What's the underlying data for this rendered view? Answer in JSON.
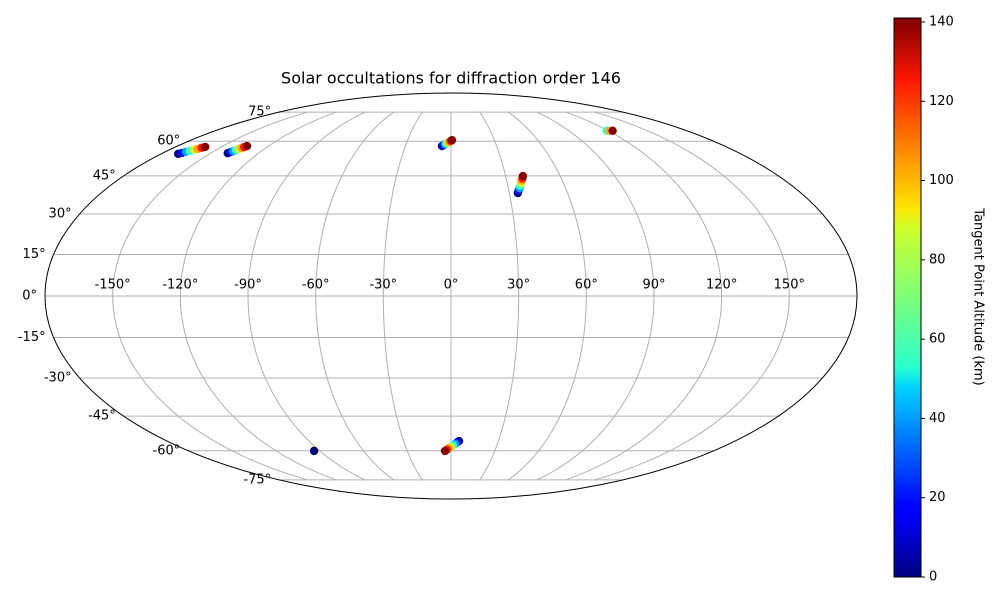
{
  "chart_data": {
    "type": "scatter",
    "projection": "mollweide",
    "title": "Solar occultations for diffraction order 146",
    "grid": true,
    "colormap": "jet",
    "xticks": [
      {
        "value": -150,
        "label": "-150°"
      },
      {
        "value": -120,
        "label": "-120°"
      },
      {
        "value": -90,
        "label": "-90°"
      },
      {
        "value": -60,
        "label": "-60°"
      },
      {
        "value": -30,
        "label": "-30°"
      },
      {
        "value": 0,
        "label": "0°"
      },
      {
        "value": 30,
        "label": "30°"
      },
      {
        "value": 60,
        "label": "60°"
      },
      {
        "value": 90,
        "label": "90°"
      },
      {
        "value": 120,
        "label": "120°"
      },
      {
        "value": 150,
        "label": "150°"
      }
    ],
    "yticks": [
      {
        "value": -75,
        "label": "-75°"
      },
      {
        "value": -60,
        "label": "-60°"
      },
      {
        "value": -45,
        "label": "-45°"
      },
      {
        "value": -30,
        "label": "-30°"
      },
      {
        "value": -15,
        "label": "-15°"
      },
      {
        "value": 0,
        "label": "0°"
      },
      {
        "value": 15,
        "label": "15°"
      },
      {
        "value": 30,
        "label": "30°"
      },
      {
        "value": 45,
        "label": "45°"
      },
      {
        "value": 60,
        "label": "60°"
      },
      {
        "value": 75,
        "label": "75°"
      }
    ],
    "colorbar": {
      "label": "Tangent Point Altitude (km)",
      "lim": [
        0,
        141
      ],
      "ticks": [
        0,
        20,
        40,
        60,
        80,
        100,
        120,
        140
      ]
    },
    "lon": [
      -169.4,
      -168.1,
      -166.9,
      -165.6,
      -164.4,
      -163.1,
      -161.9,
      -160.6,
      -139.3,
      -138.6,
      -137.8,
      -137.1,
      -136.4,
      -135.7,
      -134.9,
      -134.2,
      -5.9,
      -5.0,
      -4.0,
      -3.1,
      -2.1,
      -1.2,
      -0.2,
      0.7,
      118.7,
      121.0,
      123.3,
      34.4,
      35.1,
      35.9,
      36.6,
      37.3,
      38.0,
      38.8,
      39.5,
      5.1,
      3.8,
      2.5,
      1.2,
      -0.2,
      -1.5,
      -2.8,
      -4.1,
      -93.5,
      -94.0
    ],
    "lat": [
      54.3,
      54.7,
      55.2,
      55.6,
      56.1,
      56.5,
      57.0,
      57.4,
      54.6,
      55.1,
      55.5,
      56.0,
      56.4,
      56.9,
      57.3,
      57.8,
      57.8,
      58.2,
      58.6,
      59.0,
      59.3,
      59.7,
      60.1,
      60.5,
      65.0,
      65.0,
      65.0,
      38.1,
      39.1,
      40.0,
      41.0,
      42.0,
      43.0,
      43.9,
      44.9,
      -55.6,
      -56.2,
      -56.9,
      -57.5,
      -58.2,
      -58.8,
      -59.5,
      -60.1,
      -59.9,
      -60.1
    ],
    "altitude": [
      0,
      20,
      40,
      60,
      80,
      100,
      120,
      140,
      0,
      20,
      40,
      60,
      80,
      100,
      120,
      140,
      0,
      20,
      40,
      60,
      80,
      100,
      120,
      140,
      60,
      100,
      140,
      0,
      20,
      40,
      60,
      80,
      100,
      120,
      140,
      0,
      20,
      40,
      60,
      80,
      100,
      120,
      140,
      100,
      0
    ]
  }
}
